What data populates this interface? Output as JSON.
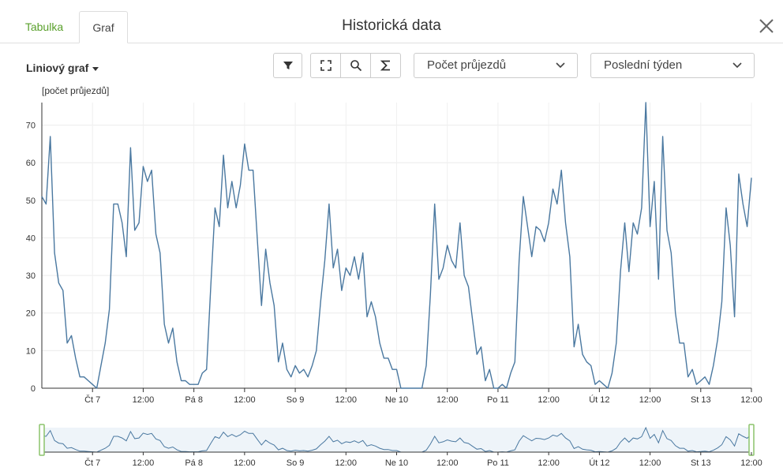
{
  "tabs": [
    {
      "label": "Tabulka",
      "active": false
    },
    {
      "label": "Graf",
      "active": true
    }
  ],
  "window_title": "Historická data",
  "toolbar": {
    "chart_type": "Liniový graf",
    "metric_select": "Počet průjezdů",
    "period_select": "Poslední týden",
    "icons": [
      "filter-icon",
      "fullscreen-icon",
      "zoom-icon",
      "sum-icon"
    ]
  },
  "colors": {
    "accent": "#5aa02c",
    "series": "#4a78a0",
    "navigator_fill": "#eef4f9",
    "navigator_handle": "#8cc36c"
  },
  "chart_data": {
    "type": "line",
    "ylabel": "[počet průjezdů]",
    "ylim": [
      0,
      76
    ],
    "yticks": [
      0,
      10,
      20,
      30,
      40,
      50,
      60,
      70
    ],
    "x_ticks": [
      {
        "h": 12,
        "label": "Čt 7"
      },
      {
        "h": 24,
        "label": "12:00"
      },
      {
        "h": 36,
        "label": "Pá 8"
      },
      {
        "h": 48,
        "label": "12:00"
      },
      {
        "h": 60,
        "label": "So 9"
      },
      {
        "h": 72,
        "label": "12:00"
      },
      {
        "h": 84,
        "label": "Ne 10"
      },
      {
        "h": 96,
        "label": "12:00"
      },
      {
        "h": 108,
        "label": "Po 11"
      },
      {
        "h": 120,
        "label": "12:00"
      },
      {
        "h": 132,
        "label": "Út 12"
      },
      {
        "h": 144,
        "label": "12:00"
      },
      {
        "h": 156,
        "label": "St 13"
      },
      {
        "h": 168,
        "label": "12:00"
      }
    ],
    "grid": true,
    "series": [
      {
        "values": [
          51,
          49,
          67,
          36,
          28,
          26,
          12,
          14,
          8,
          3,
          3,
          2,
          1,
          0,
          6,
          12,
          21,
          49,
          49,
          44,
          35,
          64,
          42,
          44,
          59,
          55,
          58,
          41,
          36,
          17,
          12,
          16,
          7,
          2,
          2,
          1,
          1,
          1,
          4,
          5,
          27,
          48,
          43,
          62,
          48,
          55,
          48,
          54,
          65,
          58,
          58,
          40,
          22,
          37,
          28,
          22,
          7,
          12,
          5,
          3,
          6,
          4,
          5,
          3,
          6,
          10,
          23,
          34,
          49,
          32,
          37,
          26,
          32,
          30,
          35,
          29,
          36,
          19,
          23,
          19,
          12,
          8,
          8,
          5,
          5,
          0,
          0,
          0,
          0,
          0,
          0,
          6,
          25,
          49,
          29,
          32,
          38,
          34,
          32,
          44,
          30,
          27,
          18,
          9,
          11,
          2,
          5,
          0,
          0,
          1,
          0,
          4,
          7,
          34,
          51,
          43,
          35,
          43,
          42,
          39,
          44,
          53,
          49,
          58,
          44,
          35,
          11,
          17,
          9,
          7,
          6,
          1,
          2,
          1,
          0,
          4,
          12,
          31,
          44,
          31,
          44,
          41,
          48,
          76,
          43,
          55,
          29,
          67,
          42,
          36,
          20,
          12,
          12,
          3,
          5,
          1,
          2,
          3,
          1,
          6,
          13,
          23,
          48,
          38,
          19,
          57,
          49,
          43,
          56
        ]
      }
    ]
  }
}
